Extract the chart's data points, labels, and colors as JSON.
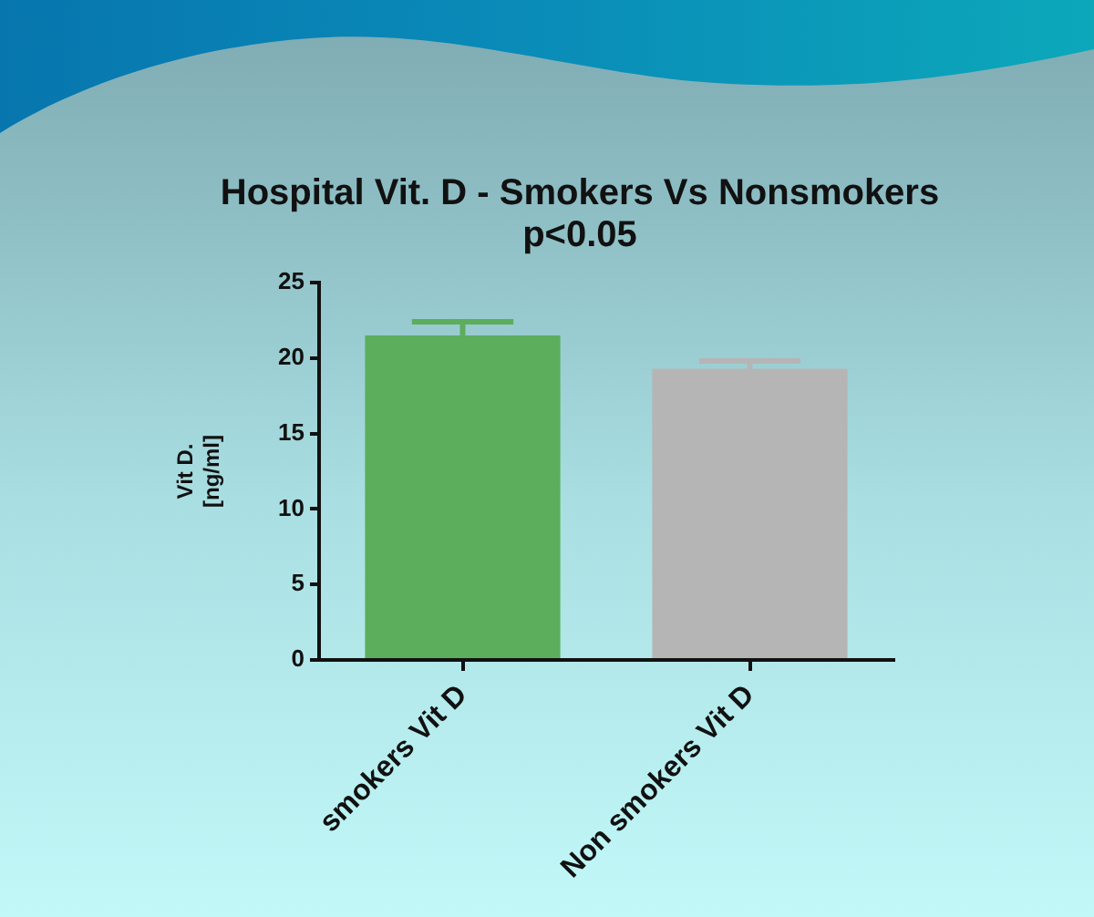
{
  "chart_data": {
    "type": "bar",
    "title": "Hospital Vit. D - Smokers Vs Nonsmokers",
    "subtitle": "p<0.05",
    "ylabel": "Vit D.\n[ng/ml]",
    "categories": [
      "smokers Vit D",
      "Non smokers Vit D"
    ],
    "values": [
      21.5,
      19.3
    ],
    "colors": [
      "#5cae5c",
      "#b5b5b5"
    ],
    "errors": [
      [
        21.5,
        22.4
      ],
      [
        19.3,
        19.8
      ]
    ],
    "ylim": [
      0,
      25
    ],
    "yticks": [
      0,
      5,
      10,
      15,
      20,
      25
    ],
    "grid": false
  }
}
